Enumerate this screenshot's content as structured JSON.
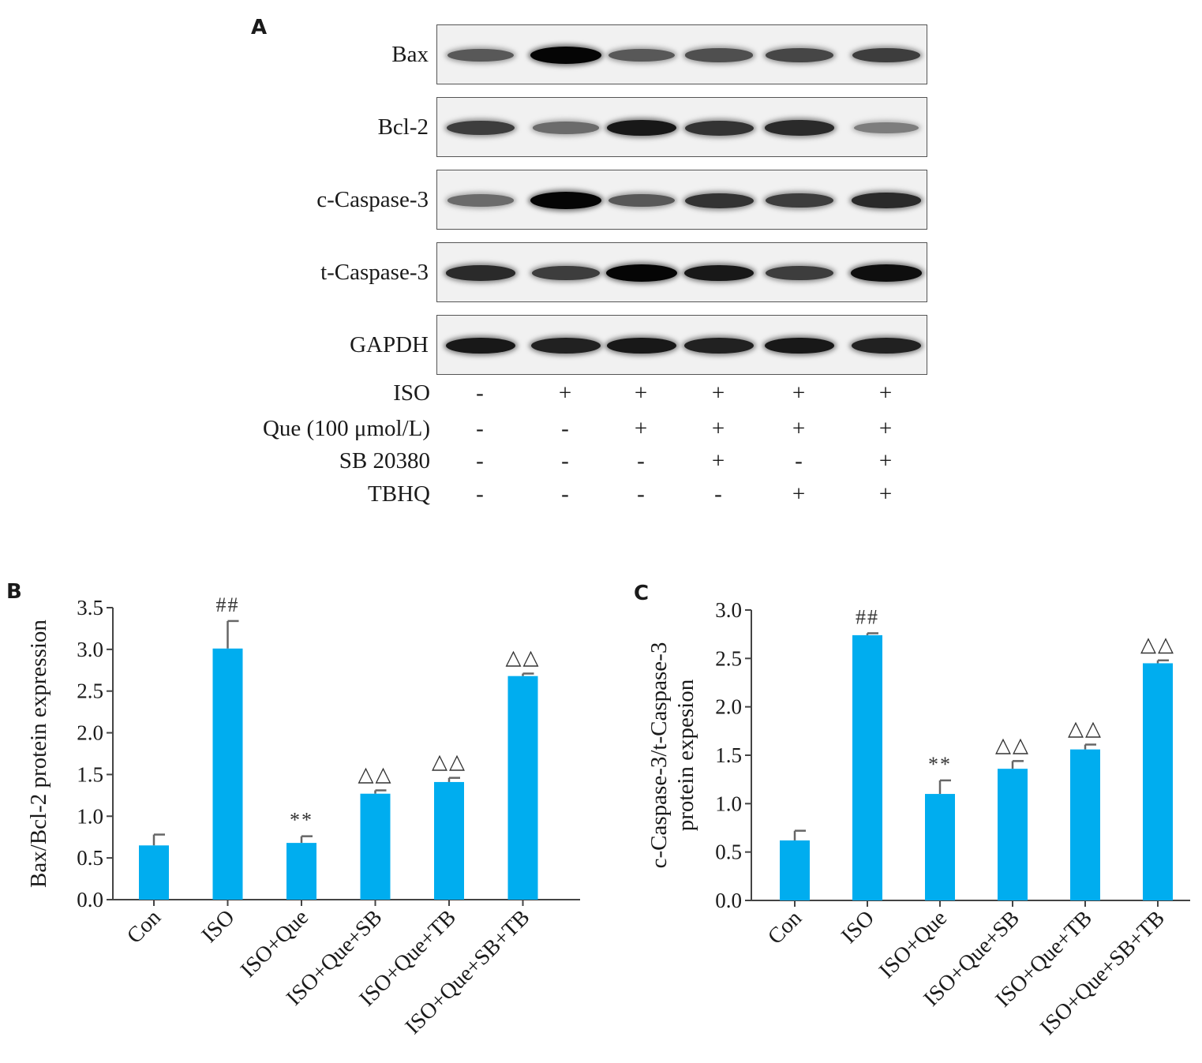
{
  "panels": {
    "a": "A",
    "b": "B",
    "c": "C"
  },
  "blot": {
    "rows": [
      {
        "label": "Bax",
        "intensity": [
          0.55,
          1.0,
          0.55,
          0.6,
          0.65,
          0.7
        ]
      },
      {
        "label": "Bcl-2",
        "intensity": [
          0.7,
          0.45,
          0.9,
          0.75,
          0.8,
          0.35
        ]
      },
      {
        "label": "c-Caspase-3",
        "intensity": [
          0.45,
          1.0,
          0.55,
          0.75,
          0.7,
          0.8
        ]
      },
      {
        "label": "t-Caspase-3",
        "intensity": [
          0.8,
          0.7,
          1.0,
          0.9,
          0.7,
          0.95
        ]
      },
      {
        "label": "GAPDH",
        "intensity": [
          0.9,
          0.85,
          0.9,
          0.85,
          0.9,
          0.85
        ]
      }
    ]
  },
  "treatments": [
    {
      "label": "ISO",
      "signs": [
        "-",
        "+",
        "+",
        "+",
        "+",
        "+"
      ]
    },
    {
      "label": "Que (100 μmol/L)",
      "signs": [
        "-",
        "-",
        "+",
        "+",
        "+",
        "+"
      ]
    },
    {
      "label": "SB 20380",
      "signs": [
        "-",
        "-",
        "-",
        "+",
        "-",
        "+"
      ]
    },
    {
      "label": "TBHQ",
      "signs": [
        "-",
        "-",
        "-",
        "-",
        "+",
        "+"
      ]
    }
  ],
  "chart_data": [
    {
      "panel": "B",
      "type": "bar",
      "ylabel": "Bax/Bcl-2 protein expression",
      "categories": [
        "Con",
        "ISO",
        "ISO+Que",
        "ISO+Que+SB",
        "ISO+Que+TB",
        "ISO+Que+SB+TB"
      ],
      "values": [
        0.65,
        3.01,
        0.68,
        1.27,
        1.41,
        2.68
      ],
      "errors": [
        0.13,
        0.33,
        0.08,
        0.04,
        0.05,
        0.03
      ],
      "annotations": [
        "",
        "##",
        "**",
        "△△",
        "△△",
        "△△"
      ],
      "ylim": [
        0,
        3.5
      ],
      "yticks": [
        "0.0",
        "0.5",
        "1.0",
        "1.5",
        "2.0",
        "2.5",
        "3.0",
        "3.5"
      ],
      "color": "#00adef"
    },
    {
      "panel": "C",
      "type": "bar",
      "ylabel": [
        "c-Caspase-3/t-Caspase-3",
        "protein expesion"
      ],
      "categories": [
        "Con",
        "ISO",
        "ISO+Que",
        "ISO+Que+SB",
        "ISO+Que+TB",
        "ISO+Que+SB+TB"
      ],
      "values": [
        0.62,
        2.74,
        1.1,
        1.36,
        1.56,
        2.45
      ],
      "errors": [
        0.1,
        0.02,
        0.14,
        0.08,
        0.05,
        0.03
      ],
      "annotations": [
        "",
        "##",
        "**",
        "△△",
        "△△",
        "△△"
      ],
      "ylim": [
        0,
        3.0
      ],
      "yticks": [
        "0.0",
        "0.5",
        "1.0",
        "1.5",
        "2.0",
        "2.5",
        "3.0"
      ],
      "color": "#00adef"
    }
  ]
}
